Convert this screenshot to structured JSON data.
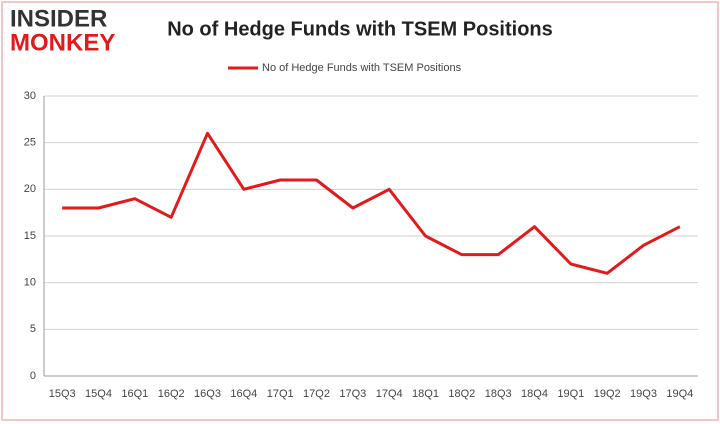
{
  "logo": {
    "top": "INSIDER",
    "bottom": "MONKEY"
  },
  "chart_data": {
    "type": "line",
    "title": "No of Hedge Funds with TSEM Positions",
    "categories": [
      "15Q3",
      "15Q4",
      "16Q1",
      "16Q2",
      "16Q3",
      "16Q4",
      "17Q1",
      "17Q2",
      "17Q3",
      "17Q4",
      "18Q1",
      "18Q2",
      "18Q3",
      "18Q4",
      "19Q1",
      "19Q2",
      "19Q3",
      "19Q4"
    ],
    "series": [
      {
        "name": "No of Hedge Funds with TSEM Positions",
        "color": "#e31a1c",
        "values": [
          18,
          18,
          19,
          17,
          26,
          20,
          21,
          21,
          18,
          20,
          15,
          13,
          13,
          16,
          12,
          11,
          14,
          16
        ]
      }
    ],
    "ylim": [
      0,
      30
    ],
    "yticks": [
      0,
      5,
      10,
      15,
      20,
      25,
      30
    ],
    "grid": true,
    "legend": "top"
  }
}
